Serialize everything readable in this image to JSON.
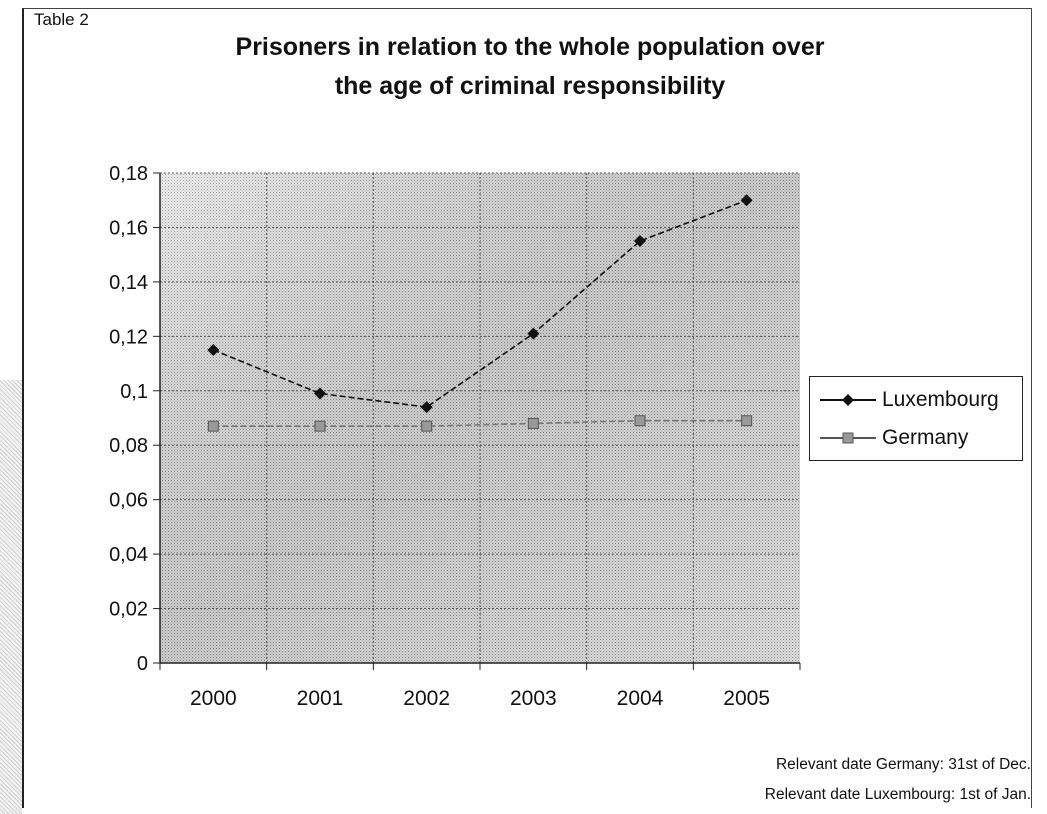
{
  "table_label": "Table 2",
  "chart_data": {
    "type": "line",
    "title": "Prisoners in relation to the whole population over the age of criminal responsibility",
    "title_lines": [
      "Prisoners in relation to the whole population over",
      "the age of criminal responsibility"
    ],
    "categories": [
      "2000",
      "2001",
      "2002",
      "2003",
      "2004",
      "2005"
    ],
    "series": [
      {
        "name": "Luxembourg",
        "values": [
          0.115,
          0.099,
          0.094,
          0.121,
          0.155,
          0.17
        ],
        "marker": "diamond",
        "color": "#111111"
      },
      {
        "name": "Germany",
        "values": [
          0.087,
          0.087,
          0.087,
          0.088,
          0.089,
          0.089
        ],
        "marker": "square",
        "color": "#777777"
      }
    ],
    "ylim": [
      0,
      0.18
    ],
    "yticks": [
      0,
      0.02,
      0.04,
      0.06,
      0.08,
      0.1,
      0.12,
      0.14,
      0.16,
      0.18
    ],
    "ytick_labels": [
      "0",
      "0,02",
      "0,04",
      "0,06",
      "0,08",
      "0,1",
      "0,12",
      "0,14",
      "0,16",
      "0,18"
    ],
    "xlabel": "",
    "ylabel": "",
    "grid": true,
    "legend_position": "right"
  },
  "notes": [
    "Relevant  date Germany: 31st of Dec.",
    "Relevant date Luxembourg: 1st of Jan."
  ]
}
